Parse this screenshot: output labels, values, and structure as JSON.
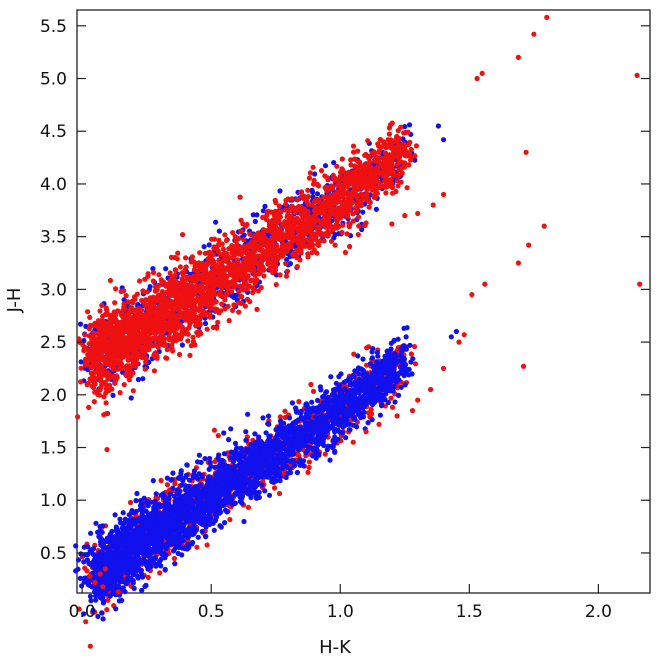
{
  "chart_data": {
    "type": "scatter",
    "title": "",
    "xlabel": "H-K",
    "ylabel": "J-H",
    "xlim": [
      -0.02,
      2.2
    ],
    "ylim": [
      0.12,
      5.65
    ],
    "xticks": [
      "0.0",
      "0.5",
      "1.0",
      "1.5",
      "2.0"
    ],
    "yticks": [
      "0.5",
      "1.0",
      "1.5",
      "2.0",
      "2.5",
      "3.0",
      "3.5",
      "4.0",
      "4.5",
      "5.0",
      "5.5"
    ],
    "grid": false,
    "legend": "none",
    "colors": {
      "red": "#ee1111",
      "blue": "#1111ee"
    },
    "bands": [
      {
        "band": "upper",
        "trend": {
          "x": [
            0.05,
            0.25,
            0.5,
            0.75,
            1.0,
            1.25,
            1.35
          ],
          "y": [
            2.35,
            2.65,
            3.05,
            3.45,
            3.85,
            4.3,
            4.45
          ]
        },
        "spread": 0.18,
        "red_points": 2600,
        "blue_points": 900
      },
      {
        "band": "lower",
        "trend": {
          "x": [
            0.05,
            0.25,
            0.5,
            0.75,
            1.0,
            1.25,
            1.35
          ],
          "y": [
            0.28,
            0.65,
            1.05,
            1.45,
            1.85,
            2.35,
            2.55
          ]
        },
        "spread": 0.16,
        "red_points": 1200,
        "blue_points": 2800
      }
    ],
    "outliers": {
      "red": [
        [
          1.55,
          5.05
        ],
        [
          1.53,
          5.0
        ],
        [
          1.69,
          5.2
        ],
        [
          1.75,
          5.42
        ],
        [
          1.8,
          5.58
        ],
        [
          2.15,
          5.03
        ],
        [
          1.72,
          4.3
        ],
        [
          1.79,
          3.6
        ],
        [
          1.73,
          3.42
        ],
        [
          1.69,
          3.25
        ],
        [
          1.56,
          3.05
        ],
        [
          1.51,
          2.95
        ],
        [
          2.16,
          3.05
        ],
        [
          1.71,
          2.27
        ],
        [
          1.36,
          3.8
        ],
        [
          1.4,
          3.9
        ],
        [
          1.3,
          3.72
        ],
        [
          1.2,
          3.62
        ],
        [
          1.25,
          3.7
        ],
        [
          1.1,
          3.63
        ],
        [
          1.02,
          3.35
        ],
        [
          0.98,
          3.42
        ],
        [
          1.07,
          3.52
        ],
        [
          1.3,
          1.95
        ],
        [
          1.28,
          1.85
        ],
        [
          1.35,
          2.05
        ],
        [
          1.22,
          1.8
        ],
        [
          1.15,
          1.72
        ],
        [
          1.1,
          1.65
        ],
        [
          1.05,
          1.55
        ],
        [
          1.4,
          2.25
        ],
        [
          1.46,
          2.5
        ],
        [
          1.48,
          2.57
        ],
        [
          0.05,
          0.22
        ],
        [
          0.03,
          0.28
        ],
        [
          0.08,
          0.18
        ],
        [
          0.14,
          0.13
        ],
        [
          0.07,
          0.3
        ],
        [
          0.09,
          0.35
        ],
        [
          0.04,
          2.45
        ],
        [
          0.06,
          2.3
        ],
        [
          0.03,
          2.33
        ]
      ],
      "blue": [
        [
          1.45,
          2.6
        ],
        [
          1.43,
          2.55
        ],
        [
          1.38,
          4.55
        ],
        [
          1.4,
          4.42
        ],
        [
          0.98,
          3.52
        ]
      ]
    }
  }
}
